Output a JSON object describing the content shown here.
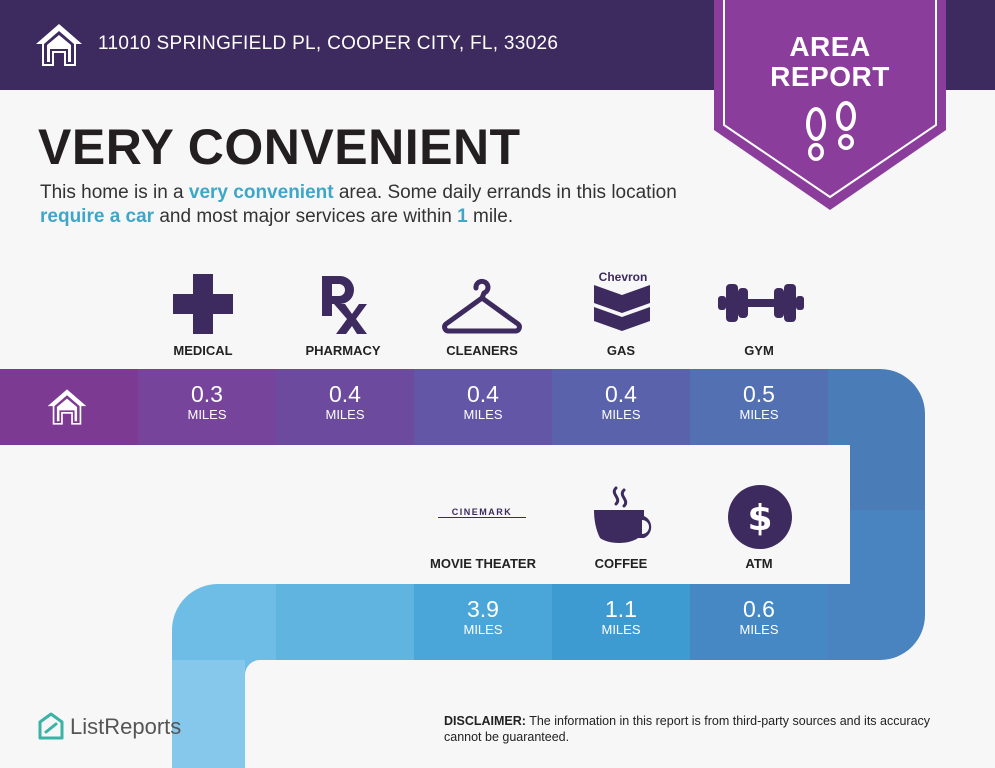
{
  "header": {
    "address": "11010 SPRINGFIELD PL, COOPER CITY, FL, 33026",
    "badge_line1": "AREA",
    "badge_line2": "REPORT",
    "home_icon": "home-icon",
    "badge_icon": "footprints-icon"
  },
  "summary": {
    "headline": "VERY CONVENIENT",
    "text_1": "This home is in a ",
    "hl_1": "very convenient",
    "text_2": " area. Some daily errands in this location ",
    "hl_2": "require a car",
    "text_3": " and most major services are within ",
    "hl_3": "1",
    "text_4": " mile."
  },
  "row1": [
    {
      "label": "MEDICAL",
      "value": "0.3",
      "unit": "MILES",
      "icon": "medical-cross-icon"
    },
    {
      "label": "PHARMACY",
      "value": "0.4",
      "unit": "MILES",
      "icon": "rx-icon"
    },
    {
      "label": "CLEANERS",
      "value": "0.4",
      "unit": "MILES",
      "icon": "hanger-icon"
    },
    {
      "label": "GAS",
      "value": "0.4",
      "unit": "MILES",
      "icon": "chevron-logo-icon",
      "logo_text": "Chevron"
    },
    {
      "label": "GYM",
      "value": "0.5",
      "unit": "MILES",
      "icon": "dumbbell-icon"
    }
  ],
  "row2": [
    {
      "label": "MOVIE THEATER",
      "value": "3.9",
      "unit": "MILES",
      "icon": "cinemark-logo-icon",
      "logo_text": "CINEMARK"
    },
    {
      "label": "COFFEE",
      "value": "1.1",
      "unit": "MILES",
      "icon": "coffee-cup-icon"
    },
    {
      "label": "ATM",
      "value": "0.6",
      "unit": "MILES",
      "icon": "dollar-icon"
    }
  ],
  "footer": {
    "brand": "ListReports",
    "brand_icon": "listreports-logo-icon",
    "disclaimer_label": "DISCLAIMER:",
    "disclaimer_text": " The information in this report is from third-party sources and its accuracy cannot be guaranteed."
  },
  "colors": {
    "header_bg": "#3d2a5e",
    "badge": "#8b3d9b",
    "accent_text": "#3fa6c8",
    "icon": "#3d2a5e"
  }
}
